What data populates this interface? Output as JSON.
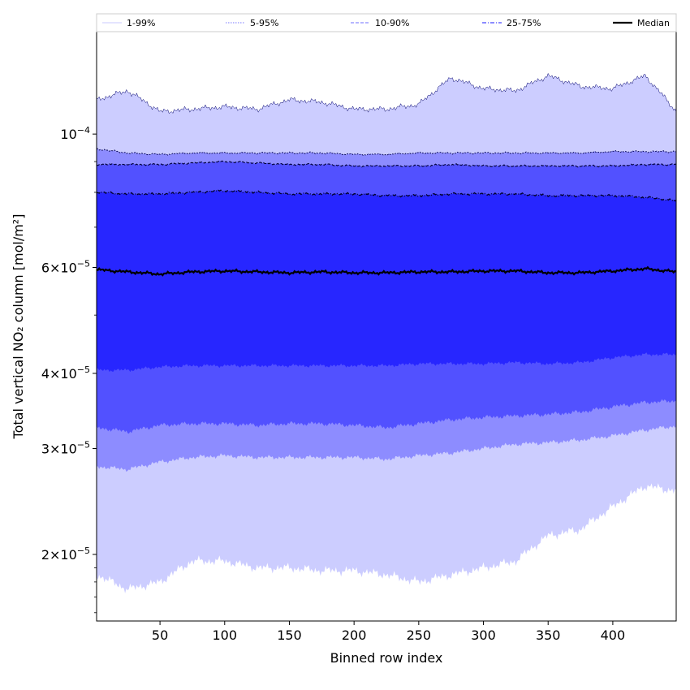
{
  "chart_data": {
    "type": "area",
    "xlabel": "Binned row index",
    "ylabel": "Total vertical NO₂ column [mol/m²]",
    "xlim": [
      1,
      449
    ],
    "ylim": [
      1.55e-05,
      0.000148
    ],
    "yscale": "log",
    "x_ticks": [
      50,
      100,
      150,
      200,
      250,
      300,
      350,
      400
    ],
    "y_ticks": [
      {
        "value": 0.0001,
        "base": "10",
        "exponent": "−4",
        "mantissa": ""
      },
      {
        "value": 6e-05,
        "mantissa": "6",
        "base": "10",
        "exponent": "−5"
      },
      {
        "value": 4e-05,
        "mantissa": "4",
        "base": "10",
        "exponent": "−5"
      },
      {
        "value": 3e-05,
        "mantissa": "3",
        "base": "10",
        "exponent": "−5"
      },
      {
        "value": 2e-05,
        "mantissa": "2",
        "base": "10",
        "exponent": "−5"
      }
    ],
    "times_symbol": "×",
    "legend_position": "top",
    "legend": [
      {
        "label": "1-99%",
        "style": "solid",
        "color": "#c9c9ff"
      },
      {
        "label": "5-95%",
        "style": "dotted",
        "color": "#7777ff"
      },
      {
        "label": "10-90%",
        "style": "dashed",
        "color": "#8a8aff"
      },
      {
        "label": "25-75%",
        "style": "dashdot",
        "color": "#4848ff"
      },
      {
        "label": "Median",
        "style": "solid",
        "color": "#000000"
      }
    ],
    "band_colors": [
      "#cccdff",
      "#8d8cff",
      "#5251ff",
      "#2726ff"
    ],
    "x": [
      1,
      25,
      50,
      75,
      100,
      125,
      150,
      175,
      200,
      225,
      250,
      275,
      300,
      325,
      350,
      375,
      400,
      425,
      449
    ],
    "series": [
      {
        "name": "1-99% upper",
        "values": [
          0.000114,
          0.000118,
          0.000109,
          0.00011,
          0.000111,
          0.00011,
          0.000114,
          0.000113,
          0.00011,
          0.00011,
          0.000112,
          0.000124,
          0.000119,
          0.000118,
          0.000125,
          0.00012,
          0.000119,
          0.000125,
          0.000109
        ]
      },
      {
        "name": "5-95% upper",
        "values": [
          9.45e-05,
          9.3e-05,
          9.25e-05,
          9.3e-05,
          9.3e-05,
          9.3e-05,
          9.3e-05,
          9.3e-05,
          9.25e-05,
          9.25e-05,
          9.3e-05,
          9.3e-05,
          9.3e-05,
          9.3e-05,
          9.3e-05,
          9.3e-05,
          9.35e-05,
          9.35e-05,
          9.35e-05
        ]
      },
      {
        "name": "10-90% upper",
        "values": [
          8.9e-05,
          8.9e-05,
          8.9e-05,
          8.95e-05,
          9e-05,
          8.95e-05,
          8.9e-05,
          8.9e-05,
          8.85e-05,
          8.85e-05,
          8.85e-05,
          8.9e-05,
          8.85e-05,
          8.85e-05,
          8.85e-05,
          8.85e-05,
          8.85e-05,
          8.9e-05,
          8.9e-05
        ]
      },
      {
        "name": "25-75% upper",
        "values": [
          8e-05,
          7.95e-05,
          7.95e-05,
          8e-05,
          8.05e-05,
          8e-05,
          7.95e-05,
          7.95e-05,
          7.95e-05,
          7.9e-05,
          7.9e-05,
          7.95e-05,
          7.95e-05,
          7.95e-05,
          7.9e-05,
          7.9e-05,
          7.9e-05,
          7.85e-05,
          7.75e-05
        ]
      },
      {
        "name": "Median",
        "values": [
          5.95e-05,
          5.9e-05,
          5.85e-05,
          5.9e-05,
          5.92e-05,
          5.9e-05,
          5.88e-05,
          5.9e-05,
          5.88e-05,
          5.88e-05,
          5.9e-05,
          5.9e-05,
          5.92e-05,
          5.92e-05,
          5.88e-05,
          5.88e-05,
          5.92e-05,
          5.97e-05,
          5.9e-05
        ]
      },
      {
        "name": "25-75% lower",
        "values": [
          4.05e-05,
          4.05e-05,
          4.1e-05,
          4.12e-05,
          4.12e-05,
          4.12e-05,
          4.12e-05,
          4.12e-05,
          4.12e-05,
          4.12e-05,
          4.15e-05,
          4.15e-05,
          4.15e-05,
          4.17e-05,
          4.15e-05,
          4.17e-05,
          4.25e-05,
          4.3e-05,
          4.3e-05
        ]
      },
      {
        "name": "10-90% lower",
        "values": [
          3.25e-05,
          3.2e-05,
          3.28e-05,
          3.3e-05,
          3.3e-05,
          3.28e-05,
          3.3e-05,
          3.3e-05,
          3.28e-05,
          3.25e-05,
          3.3e-05,
          3.35e-05,
          3.38e-05,
          3.4e-05,
          3.42e-05,
          3.45e-05,
          3.52e-05,
          3.58e-05,
          3.6e-05
        ]
      },
      {
        "name": "5-95% lower",
        "values": [
          2.8e-05,
          2.77e-05,
          2.85e-05,
          2.9e-05,
          2.92e-05,
          2.9e-05,
          2.9e-05,
          2.9e-05,
          2.9e-05,
          2.88e-05,
          2.92e-05,
          2.95e-05,
          3e-05,
          3.05e-05,
          3.07e-05,
          3.1e-05,
          3.15e-05,
          3.22e-05,
          3.27e-05
        ]
      },
      {
        "name": "1-99% lower",
        "values": [
          1.85e-05,
          1.75e-05,
          1.8e-05,
          1.95e-05,
          1.95e-05,
          1.9e-05,
          1.9e-05,
          1.88e-05,
          1.88e-05,
          1.85e-05,
          1.8e-05,
          1.85e-05,
          1.9e-05,
          1.95e-05,
          2.15e-05,
          2.2e-05,
          2.4e-05,
          2.6e-05,
          2.55e-05
        ]
      }
    ]
  }
}
